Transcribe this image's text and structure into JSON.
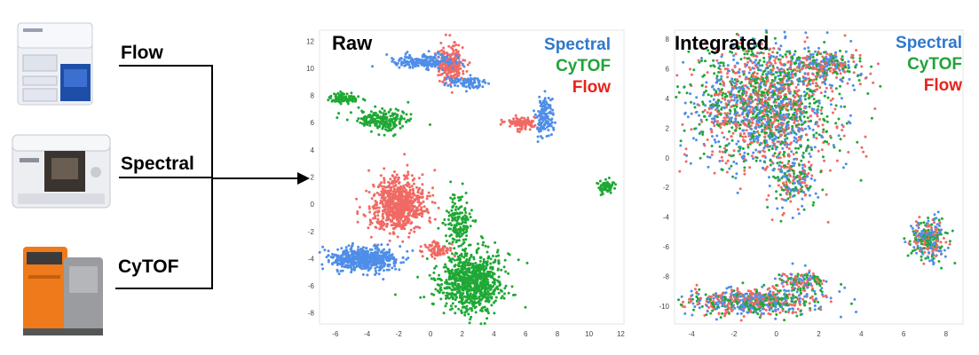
{
  "instruments": [
    {
      "id": "flow",
      "label": "Flow",
      "icon": "flow-cytometer-icon"
    },
    {
      "id": "spectral",
      "label": "Spectral",
      "icon": "spectral-cytometer-icon"
    },
    {
      "id": "cytof",
      "label": "CyTOF",
      "icon": "cytof-instrument-icon"
    }
  ],
  "colors": {
    "Spectral": "#4f8ee8",
    "CyTOF": "#1fa835",
    "Flow": "#f06a64",
    "legend_spectral": "#2f78cc",
    "legend_cytof": "#21a33a",
    "legend_flow": "#e8231c"
  },
  "panels": [
    {
      "id": "raw",
      "title": "Raw",
      "legend": [
        "Spectral",
        "CyTOF",
        "Flow"
      ],
      "chart_data": {
        "type": "scatter",
        "x_ticks": [
          -6,
          -4,
          -2,
          0,
          2,
          4,
          6,
          8,
          10,
          12
        ],
        "y_ticks": [
          12,
          10,
          8,
          6,
          4,
          2,
          0,
          -2,
          -4,
          -6,
          -8
        ],
        "xlim": [
          -7,
          12.2
        ],
        "ylim": [
          -8.8,
          12.8
        ],
        "clusters": [
          {
            "series": "Flow",
            "cx": 1.3,
            "cy": 10.3,
            "rx": 0.7,
            "ry": 1.2,
            "n": 260
          },
          {
            "series": "Spectral",
            "cx": -0.5,
            "cy": 10.5,
            "rx": 1.6,
            "ry": 0.5,
            "n": 200
          },
          {
            "series": "Spectral",
            "cx": 2.2,
            "cy": 9.0,
            "rx": 1.2,
            "ry": 0.4,
            "n": 90
          },
          {
            "series": "CyTOF",
            "cx": -5.5,
            "cy": 7.8,
            "rx": 0.8,
            "ry": 0.3,
            "n": 90
          },
          {
            "series": "CyTOF",
            "cx": -3.0,
            "cy": 6.2,
            "rx": 1.6,
            "ry": 0.7,
            "n": 200
          },
          {
            "series": "Flow",
            "cx": 5.8,
            "cy": 6.0,
            "rx": 0.8,
            "ry": 0.4,
            "n": 110
          },
          {
            "series": "Spectral",
            "cx": 7.2,
            "cy": 6.4,
            "rx": 0.5,
            "ry": 1.3,
            "n": 140
          },
          {
            "series": "CyTOF",
            "cx": 11.0,
            "cy": 1.3,
            "rx": 0.5,
            "ry": 0.4,
            "n": 60
          },
          {
            "series": "Flow",
            "cx": -2.0,
            "cy": 0.0,
            "rx": 1.6,
            "ry": 1.7,
            "n": 750
          },
          {
            "series": "Spectral",
            "cx": -4.2,
            "cy": -4.0,
            "rx": 2.0,
            "ry": 0.8,
            "n": 560
          },
          {
            "series": "CyTOF",
            "cx": 2.6,
            "cy": -5.7,
            "rx": 1.9,
            "ry": 2.0,
            "n": 820
          },
          {
            "series": "CyTOF",
            "cx": 1.8,
            "cy": -1.4,
            "rx": 0.8,
            "ry": 1.8,
            "n": 160
          },
          {
            "series": "Flow",
            "cx": 0.5,
            "cy": -3.3,
            "rx": 0.9,
            "ry": 0.5,
            "n": 80
          }
        ]
      }
    },
    {
      "id": "integrated",
      "title": "Integrated",
      "legend": [
        "Spectral",
        "CyTOF",
        "Flow"
      ],
      "chart_data": {
        "type": "scatter",
        "x_ticks": [
          -4,
          -2,
          0,
          2,
          4,
          6,
          8
        ],
        "y_ticks": [
          8,
          6,
          4,
          2,
          0,
          -2,
          -4,
          -6,
          -8,
          -10
        ],
        "xlim": [
          -4.8,
          8.8
        ],
        "ylim": [
          -11.2,
          8.6
        ],
        "mixed": true,
        "clusters": [
          {
            "cx": -0.5,
            "cy": 3.5,
            "rx": 3.1,
            "ry": 3.8,
            "n": 1800
          },
          {
            "cx": 2.2,
            "cy": 6.2,
            "rx": 1.8,
            "ry": 0.9,
            "n": 260
          },
          {
            "cx": 0.8,
            "cy": -1.5,
            "rx": 1.0,
            "ry": 1.8,
            "n": 200
          },
          {
            "cx": -1.0,
            "cy": -9.7,
            "rx": 2.9,
            "ry": 0.8,
            "n": 640
          },
          {
            "cx": 1.2,
            "cy": -8.3,
            "rx": 1.1,
            "ry": 0.6,
            "n": 140
          },
          {
            "cx": 7.2,
            "cy": -5.5,
            "rx": 0.8,
            "ry": 1.3,
            "n": 280
          }
        ]
      }
    }
  ]
}
